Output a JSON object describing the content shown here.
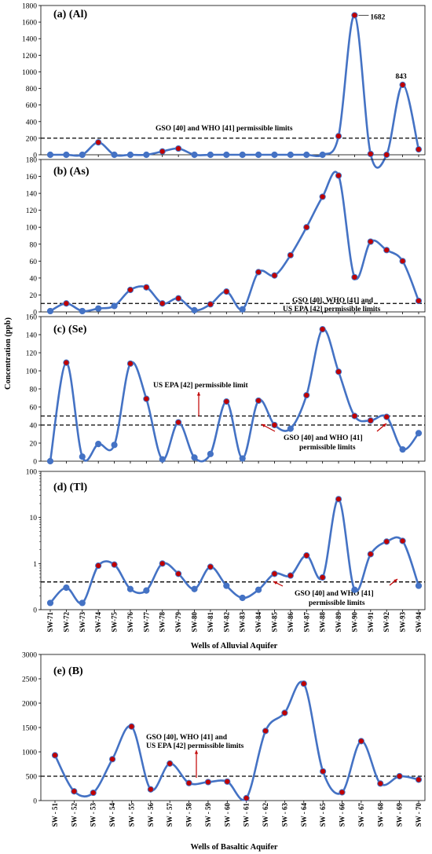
{
  "axis_label_y": "Concentration (ppb)",
  "alluvial_xlabel": "Wells of Alluvial Aquifer",
  "basaltic_xlabel": "Wells of Basaltic Aquifer",
  "chart_data": [
    {
      "id": "al",
      "type": "line",
      "title": "(a) (Al)",
      "categories": [
        "SW-71",
        "SW-72",
        "SW-73",
        "SW-74",
        "SW-75",
        "SW-76",
        "SW-77",
        "SW-78",
        "SW-79",
        "SW-80",
        "SW-81",
        "SW-82",
        "SW-83",
        "SW-84",
        "SW-85",
        "SW-86",
        "SW-87",
        "SW-88",
        "SW-89",
        "SW-90",
        "SW-91",
        "SW-92",
        "SW-93",
        "SW-94"
      ],
      "values": [
        0,
        0,
        0,
        150,
        0,
        0,
        0,
        40,
        75,
        0,
        0,
        0,
        0,
        0,
        0,
        0,
        0,
        0,
        225,
        1682,
        10,
        0,
        843,
        65
      ],
      "ylim": [
        0,
        1800
      ],
      "yticks": [
        0,
        200,
        400,
        600,
        800,
        1000,
        1200,
        1400,
        1600,
        1800
      ],
      "log": false,
      "limits": [
        200
      ],
      "data_labels": [
        {
          "index": 19,
          "text": "1682"
        },
        {
          "index": 22,
          "text": "843"
        }
      ],
      "annotations": [
        {
          "text": "GSO [40] and WHO [41] permissible limits"
        }
      ],
      "show_xticks": false
    },
    {
      "id": "as",
      "type": "line",
      "title": "(b) (As)",
      "categories": [
        "SW-71",
        "SW-72",
        "SW-73",
        "SW-74",
        "SW-75",
        "SW-76",
        "SW-77",
        "SW-78",
        "SW-79",
        "SW-80",
        "SW-81",
        "SW-82",
        "SW-83",
        "SW-84",
        "SW-85",
        "SW-86",
        "SW-87",
        "SW-88",
        "SW-89",
        "SW-90",
        "SW-91",
        "SW-92",
        "SW-93",
        "SW-94"
      ],
      "values": [
        1,
        10,
        1,
        4,
        7,
        26,
        29,
        10,
        16,
        2,
        9,
        24,
        3,
        47,
        43,
        67,
        100,
        136,
        161,
        41,
        83,
        73,
        60,
        13
      ],
      "ylim": [
        0,
        180
      ],
      "yticks": [
        0,
        20,
        40,
        60,
        80,
        100,
        120,
        140,
        160,
        180
      ],
      "log": false,
      "limits": [
        10
      ],
      "data_labels": [],
      "annotations": [
        {
          "text": "GSO [40], WHO [41] and"
        },
        {
          "text": "US EPA [42] permissible limits"
        }
      ],
      "show_xticks": false
    },
    {
      "id": "se",
      "type": "line",
      "title": "(c) (Se)",
      "categories": [
        "SW-71",
        "SW-72",
        "SW-73",
        "SW-74",
        "SW-75",
        "SW-76",
        "SW-77",
        "SW-78",
        "SW-79",
        "SW-80",
        "SW-81",
        "SW-82",
        "SW-83",
        "SW-84",
        "SW-85",
        "SW-86",
        "SW-87",
        "SW-88",
        "SW-89",
        "SW-90",
        "SW-91",
        "SW-92",
        "SW-93",
        "SW-94"
      ],
      "values": [
        0,
        109,
        5,
        19,
        18,
        108,
        69,
        2,
        43,
        4,
        8,
        66,
        3,
        67,
        40,
        36,
        73,
        146,
        99,
        50,
        45,
        49,
        13,
        31
      ],
      "ylim": [
        0,
        160
      ],
      "yticks": [
        0,
        20,
        40,
        60,
        80,
        100,
        120,
        140,
        160
      ],
      "log": false,
      "limits": [
        50,
        40
      ],
      "data_labels": [],
      "annotations": [
        {
          "text": "US EPA [42] permissible limit"
        },
        {
          "text": "GSO [40] and WHO [41]"
        },
        {
          "text": "permissible limits"
        }
      ],
      "show_xticks": false
    },
    {
      "id": "tl",
      "type": "line",
      "title": "(d) (Tl)",
      "categories": [
        "SW-71",
        "SW-72",
        "SW-73",
        "SW-74",
        "SW-75",
        "SW-76",
        "SW-77",
        "SW-78",
        "SW-79",
        "SW-80",
        "SW-81",
        "SW-82",
        "SW-83",
        "SW-84",
        "SW-85",
        "SW-86",
        "SW-87",
        "SW-88",
        "SW-89",
        "SW-90",
        "SW-91",
        "SW-92",
        "SW-93",
        "SW-94"
      ],
      "values": [
        0.14,
        0.3,
        0.14,
        0.9,
        0.95,
        0.28,
        0.26,
        1.0,
        0.6,
        0.28,
        0.85,
        0.33,
        0.18,
        0.27,
        0.6,
        0.55,
        1.5,
        0.5,
        25,
        0.27,
        1.6,
        3.0,
        3.1,
        0.33
      ],
      "ylim": [
        0.1,
        100
      ],
      "yticks": [
        0.1,
        1,
        10,
        100
      ],
      "ytick_labels": [
        "0",
        "1",
        "10",
        "100"
      ],
      "log": true,
      "limits": [
        0.4
      ],
      "data_labels": [],
      "annotations": [
        {
          "text": "GSO [40] and WHO [41]"
        },
        {
          "text": "permissible limits"
        }
      ],
      "show_xticks": true
    },
    {
      "id": "b",
      "type": "line",
      "title": "(e) (B)",
      "categories": [
        "SW - 51",
        "SW - 52",
        "SW - 53",
        "SW - 54",
        "SW - 55",
        "SW - 56",
        "SW - 57",
        "SW - 58",
        "SW - 59",
        "SW - 60",
        "SW - 61",
        "SW - 62",
        "SW - 63",
        "SW - 64",
        "SW - 65",
        "SW - 66",
        "SW - 67",
        "SW - 68",
        "SW - 69",
        "SW - 70"
      ],
      "values": [
        930,
        190,
        160,
        850,
        1520,
        230,
        760,
        360,
        380,
        390,
        50,
        1430,
        1800,
        2400,
        600,
        170,
        1220,
        350,
        500,
        430
      ],
      "ylim": [
        0,
        3000
      ],
      "yticks": [
        0,
        500,
        1000,
        1500,
        2000,
        2500,
        3000
      ],
      "log": false,
      "limits": [
        500
      ],
      "data_labels": [],
      "annotations": [
        {
          "text": "GSO [40], WHO [41] and"
        },
        {
          "text": "US EPA [42] permissible limits"
        }
      ],
      "show_xticks": true
    }
  ],
  "colors": {
    "line": "#4472c4",
    "marker_red": "#c00000",
    "marker_blue": "#4472c4",
    "arrow": "#c00000"
  }
}
